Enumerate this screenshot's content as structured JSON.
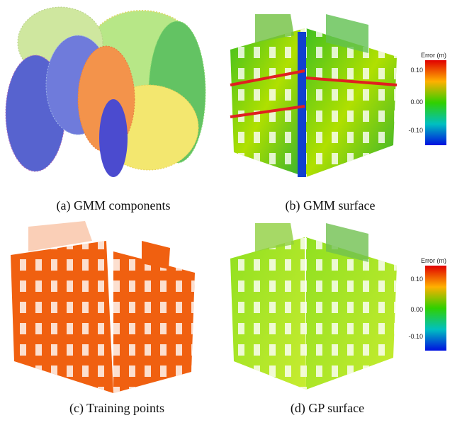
{
  "panels": [
    {
      "caption": "(a) GMM components"
    },
    {
      "caption": "(b) GMM surface",
      "colorbar": {
        "title": "Error (m)",
        "ticks": [
          "0.10",
          "0.00",
          "-0.10"
        ]
      }
    },
    {
      "caption": "(c) Training points"
    },
    {
      "caption": "(d) GP surface",
      "colorbar": {
        "title": "Error (m)",
        "ticks": [
          "0.10",
          "0.00",
          "-0.10"
        ]
      }
    }
  ]
}
